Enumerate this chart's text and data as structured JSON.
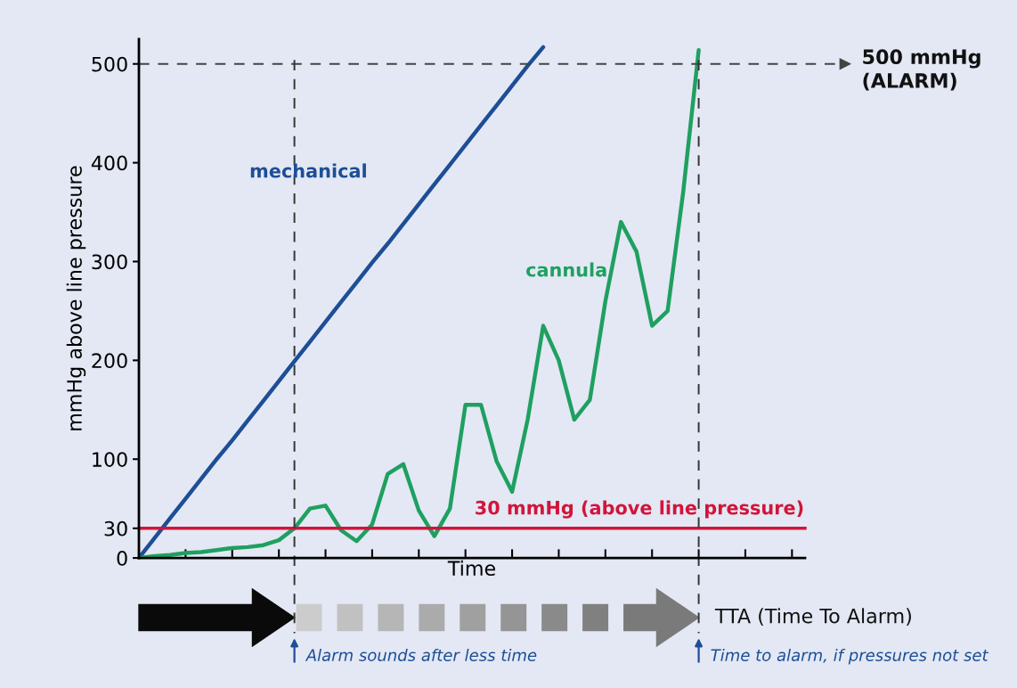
{
  "chart_data": {
    "type": "line",
    "ylabel": "mmHg above line pressure",
    "xlabel": "Time",
    "categories": [
      null,
      null,
      null,
      null,
      null,
      null,
      null,
      null,
      null,
      null,
      null,
      null,
      null,
      null,
      null,
      null,
      null,
      null,
      null,
      null,
      null,
      null,
      null,
      null,
      null,
      null,
      null,
      null,
      null,
      null,
      null,
      null,
      null,
      null,
      null,
      null,
      null
    ],
    "ylim": [
      0,
      525
    ],
    "yticks": [
      0,
      30,
      100,
      200,
      300,
      400,
      500
    ],
    "tick_labels": "y",
    "grid": false,
    "legend": false,
    "marker": "none",
    "line_style": "solid",
    "series": [
      {
        "name": "mechanical",
        "color": "#1d4e96",
        "values": [
          0,
          20,
          40,
          60,
          80,
          100,
          119,
          139,
          159,
          179,
          199,
          219,
          239,
          259,
          279,
          299,
          318,
          338,
          358,
          378,
          398,
          418,
          438,
          458,
          478,
          498,
          517,
          null,
          null,
          null,
          null,
          null,
          null,
          null,
          null,
          null,
          null
        ]
      },
      {
        "name": "cannula",
        "color": "#1fa060",
        "values": [
          0,
          2,
          3,
          5,
          6,
          8,
          10,
          11,
          13,
          18,
          30,
          50,
          53,
          28,
          17,
          34,
          85,
          95,
          48,
          22,
          50,
          155,
          155,
          98,
          67,
          140,
          235,
          200,
          140,
          160,
          260,
          340,
          310,
          235,
          250,
          370,
          514
        ]
      }
    ],
    "ref_lines": [
      {
        "axis": "y",
        "value": 30,
        "label": "30 mmHg (above line pressure)",
        "color": "#d2143a",
        "line_style": "solid"
      },
      {
        "axis": "y",
        "value": 500,
        "label": "500 mmHg\n(ALARM)",
        "color": "#444444",
        "line_style": "dashed"
      }
    ],
    "annotations": [
      "TTA (Time To Alarm)",
      "Alarm sounds after less time",
      "Time to alarm, if pressures not set"
    ]
  }
}
